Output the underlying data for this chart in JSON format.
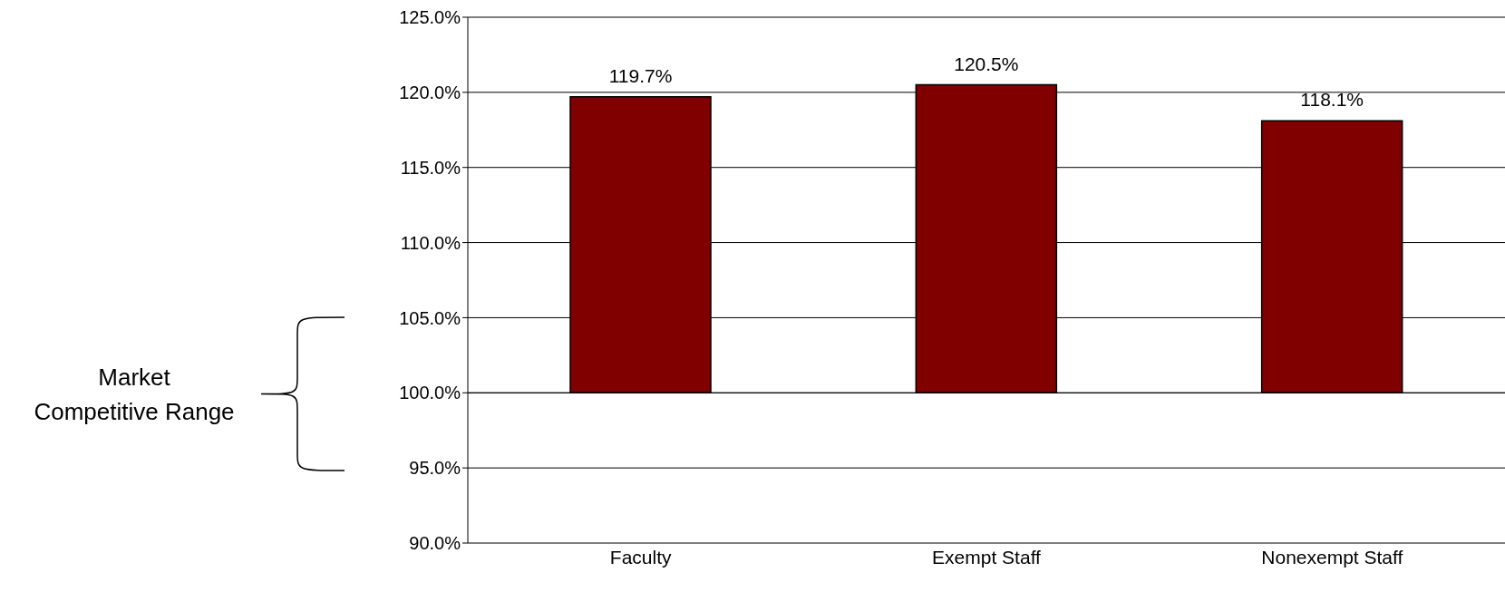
{
  "chart_data": {
    "type": "bar",
    "categories": [
      "Faculty",
      "Exempt Staff",
      "Nonexempt Staff"
    ],
    "base": [
      100,
      100,
      100
    ],
    "values": [
      19.7,
      20.5,
      18.1
    ],
    "value_labels": [
      "119.7%",
      "120.5%",
      "118.1%"
    ],
    "color": "#800000",
    "ylim": [
      90,
      125
    ],
    "yticks": [
      {
        "value": 90,
        "label": "90.0%"
      },
      {
        "value": 95,
        "label": "95.0%"
      },
      {
        "value": 100,
        "label": "100.0%"
      },
      {
        "value": 105,
        "label": "105.0%"
      },
      {
        "value": 110,
        "label": "110.0%"
      },
      {
        "value": 115,
        "label": "115.0%"
      },
      {
        "value": 120,
        "label": "120.0%"
      },
      {
        "value": 125,
        "label": "125.0%"
      }
    ],
    "grid": "y",
    "annotations": [
      "Market",
      "Competitive Range"
    ]
  }
}
